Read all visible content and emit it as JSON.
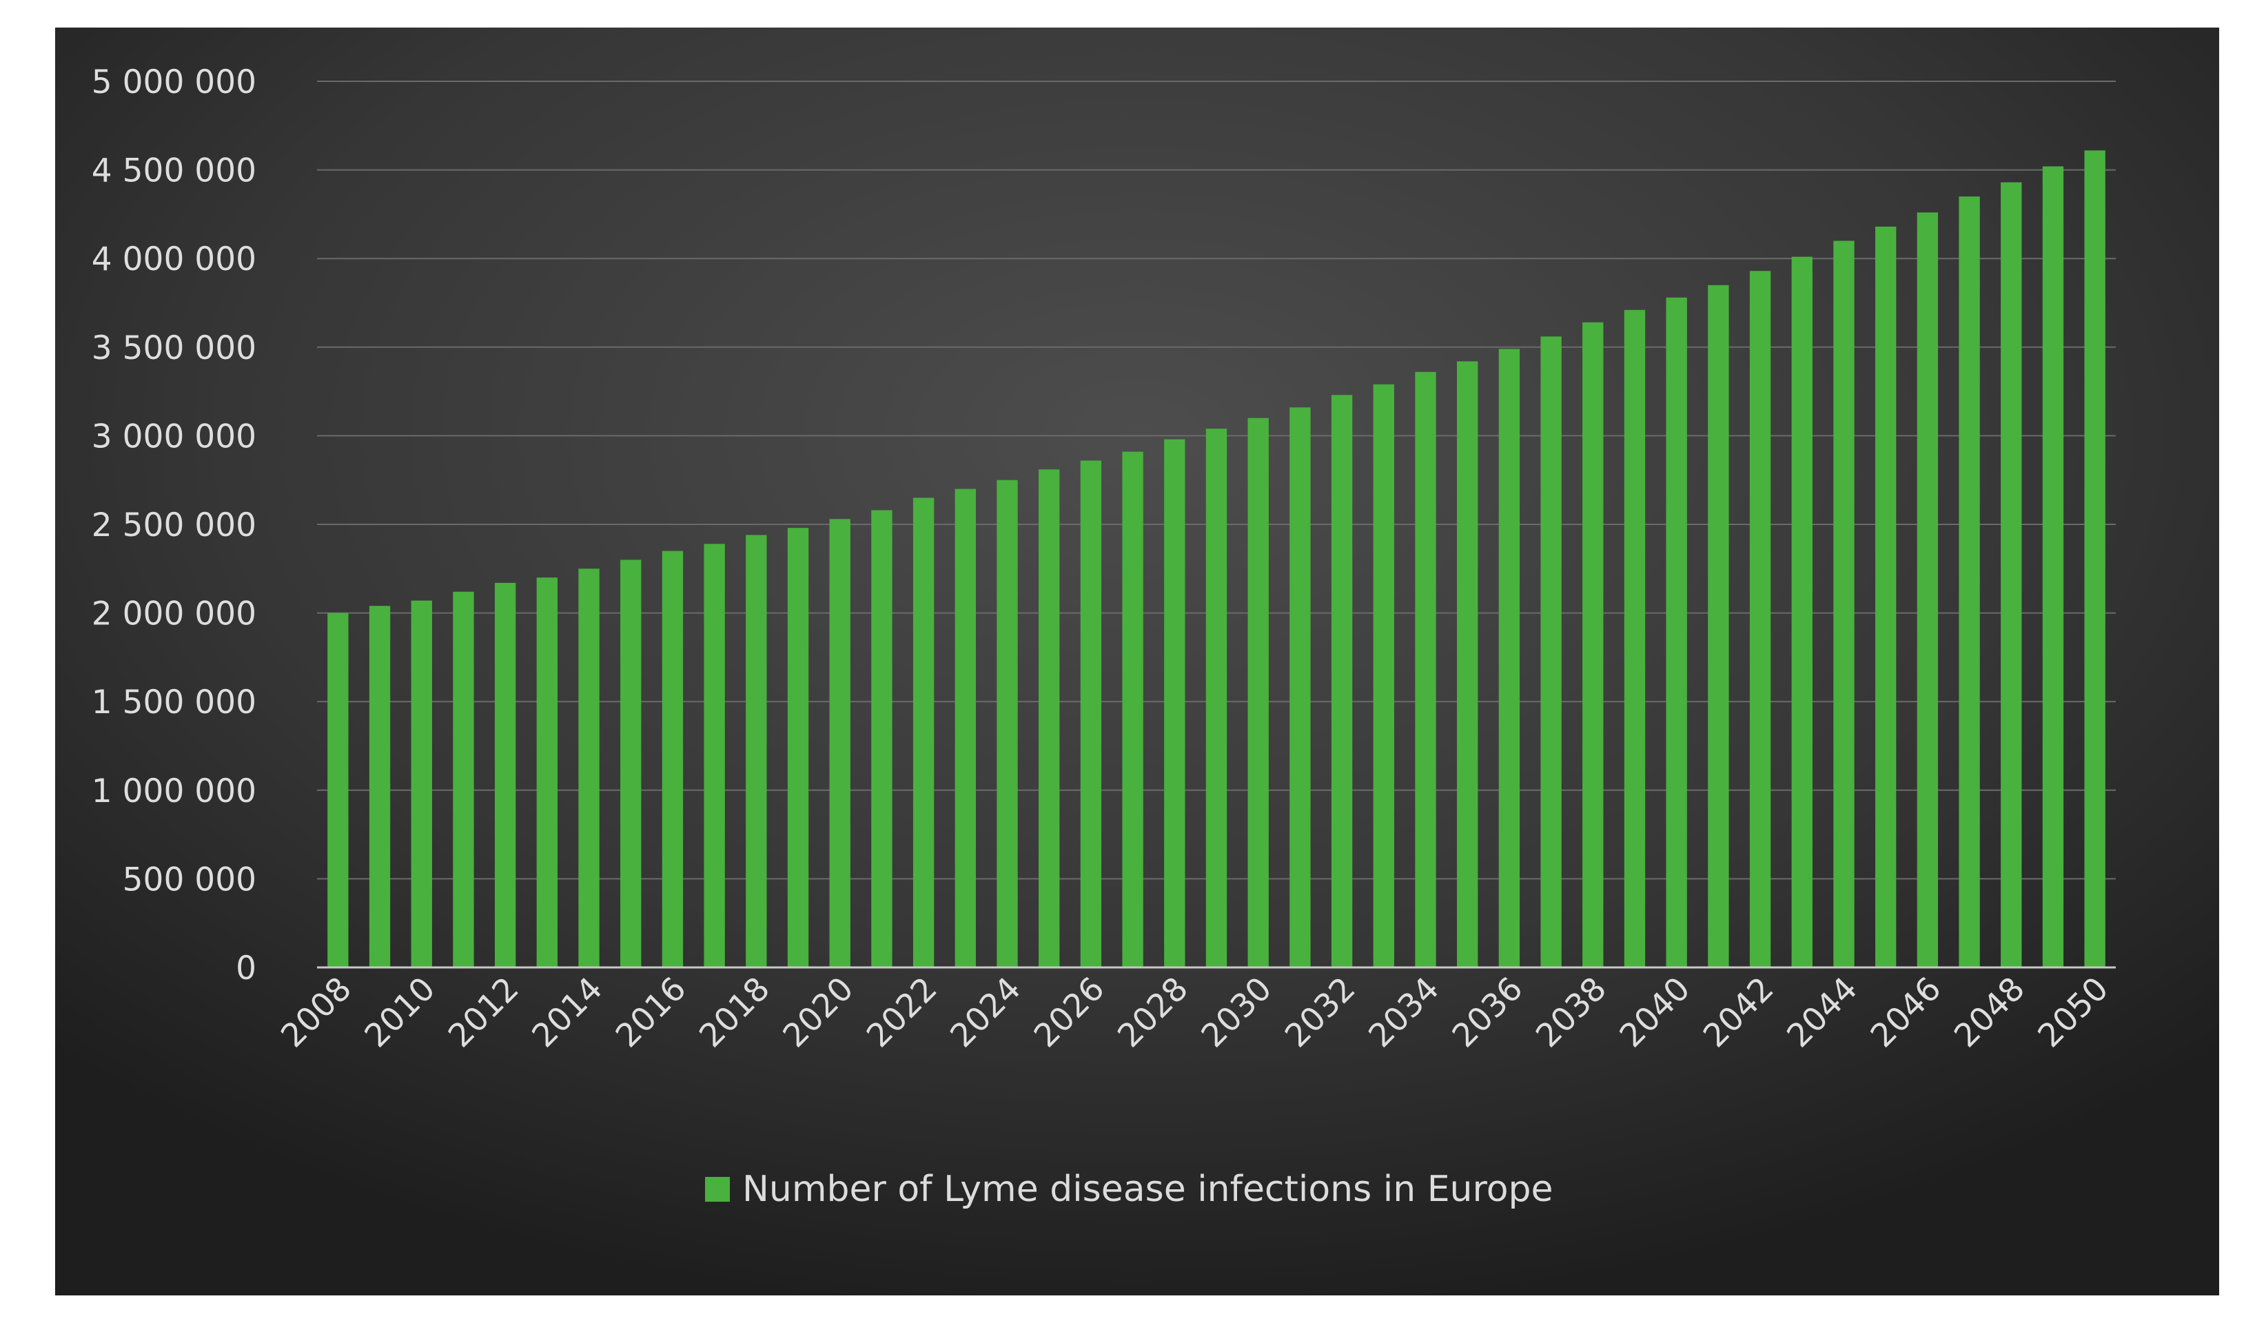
{
  "colors": {
    "bar": "#49b13e",
    "background_center": "#4a4a4a",
    "background_edge": "#1f1f1f",
    "gridline": "#6a6a6a",
    "axis_line": "#c8c8c8",
    "text": "#dedede"
  },
  "chart_data": {
    "type": "bar",
    "title": "",
    "xlabel": "",
    "ylabel": "",
    "ylim": [
      0,
      5000000
    ],
    "y_ticks": [
      0,
      500000,
      1000000,
      1500000,
      2000000,
      2500000,
      3000000,
      3500000,
      4000000,
      4500000,
      5000000
    ],
    "y_tick_labels": [
      "0",
      "500 000",
      "1 000 000",
      "1 500 000",
      "2 000 000",
      "2 500 000",
      "3 000 000",
      "3 500 000",
      "4 000 000",
      "4 500 000",
      "5 000 000"
    ],
    "categories": [
      "2008",
      "2009",
      "2010",
      "2011",
      "2012",
      "2013",
      "2014",
      "2015",
      "2016",
      "2017",
      "2018",
      "2019",
      "2020",
      "2021",
      "2022",
      "2023",
      "2024",
      "2025",
      "2026",
      "2027",
      "2028",
      "2029",
      "2030",
      "2031",
      "2032",
      "2033",
      "2034",
      "2035",
      "2036",
      "2037",
      "2038",
      "2039",
      "2040",
      "2041",
      "2042",
      "2043",
      "2044",
      "2045",
      "2046",
      "2047",
      "2048",
      "2049",
      "2050"
    ],
    "x_tick_labels": [
      "2008",
      "2010",
      "2012",
      "2014",
      "2016",
      "2018",
      "2020",
      "2022",
      "2024",
      "2026",
      "2028",
      "2030",
      "2032",
      "2034",
      "2036",
      "2038",
      "2040",
      "2042",
      "2044",
      "2046",
      "2048",
      "2050"
    ],
    "series": [
      {
        "name": "Number of Lyme disease infections in Europe",
        "values": [
          2000000,
          2040000,
          2070000,
          2120000,
          2170000,
          2200000,
          2250000,
          2300000,
          2350000,
          2390000,
          2440000,
          2480000,
          2530000,
          2580000,
          2650000,
          2700000,
          2750000,
          2810000,
          2860000,
          2910000,
          2980000,
          3040000,
          3100000,
          3160000,
          3230000,
          3290000,
          3360000,
          3420000,
          3490000,
          3560000,
          3640000,
          3710000,
          3780000,
          3850000,
          3930000,
          4010000,
          4100000,
          4180000,
          4260000,
          4350000,
          4430000,
          4520000,
          4610000
        ]
      }
    ],
    "legend_position": "bottom-center",
    "grid": true
  }
}
